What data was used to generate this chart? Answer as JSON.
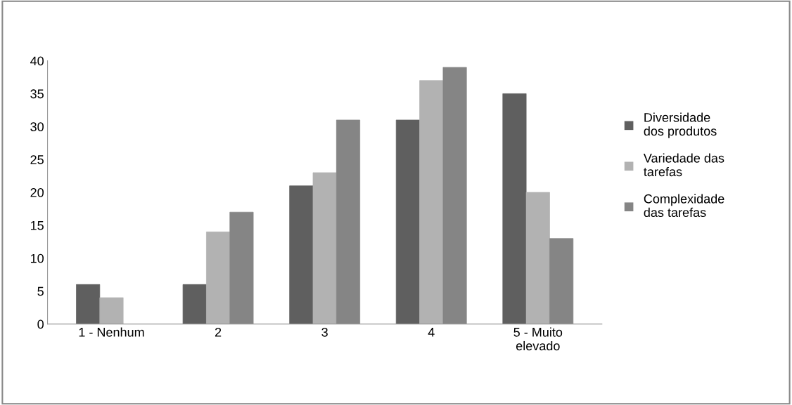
{
  "chart_data": {
    "type": "bar",
    "categories": [
      "1 - Nenhum",
      "2",
      "3",
      "4",
      "5 - Muito elevado"
    ],
    "series": [
      {
        "name": "Diversidade dos produtos",
        "color": "#5f5f5f",
        "values": [
          6,
          6,
          21,
          31,
          35
        ]
      },
      {
        "name": "Variedade das tarefas",
        "color": "#b2b2b2",
        "values": [
          4,
          14,
          23,
          37,
          20
        ]
      },
      {
        "name": "Complexidade das tarefas",
        "color": "#858585",
        "values": [
          0,
          17,
          31,
          39,
          13
        ]
      }
    ],
    "ylim": [
      0,
      40
    ],
    "yticks": [
      0,
      5,
      10,
      15,
      20,
      25,
      30,
      35,
      40
    ],
    "grid": false,
    "legend": "right"
  }
}
